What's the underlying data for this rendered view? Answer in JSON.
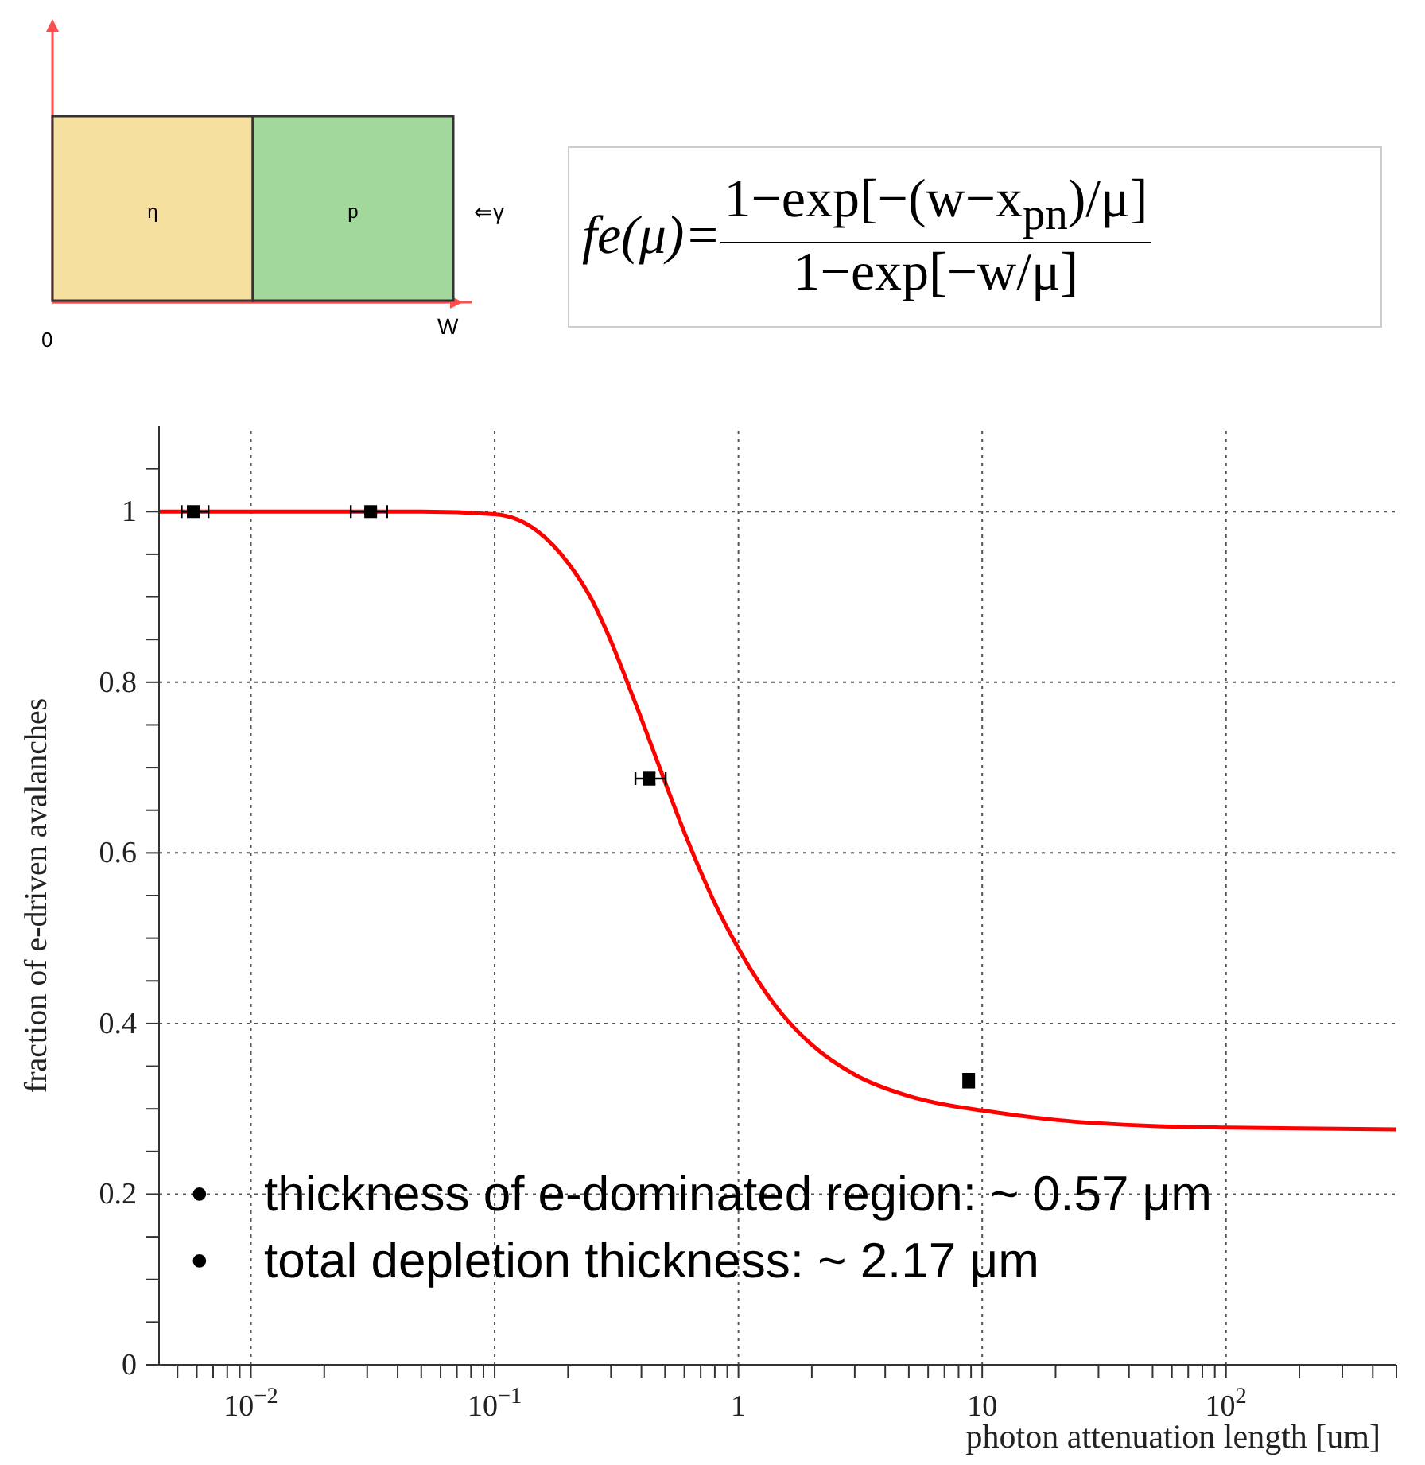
{
  "chart_data": {
    "type": "line",
    "xlabel": "photon attenuation length [um]",
    "ylabel": "fraction of e-driven avalanches",
    "log": "x",
    "grid": true,
    "xlim": [
      0.0042,
      500
    ],
    "ylim": [
      0,
      1.1
    ],
    "xticks": [
      {
        "value": 0.005,
        "label": null
      },
      {
        "value": 0.006,
        "label": null
      },
      {
        "value": 0.007,
        "label": null
      },
      {
        "value": 0.008,
        "label": null
      },
      {
        "value": 0.009,
        "label": null
      },
      {
        "value": 0.01,
        "label": "10$^{−2}$"
      },
      {
        "value": 0.02,
        "label": null
      },
      {
        "value": 0.03,
        "label": null
      },
      {
        "value": 0.04,
        "label": null
      },
      {
        "value": 0.05,
        "label": null
      },
      {
        "value": 0.06,
        "label": null
      },
      {
        "value": 0.07,
        "label": null
      },
      {
        "value": 0.08,
        "label": null
      },
      {
        "value": 0.09,
        "label": null
      },
      {
        "value": 0.1,
        "label": "10$^{−1}$"
      },
      {
        "value": 0.2,
        "label": null
      },
      {
        "value": 0.3,
        "label": null
      },
      {
        "value": 0.4,
        "label": null
      },
      {
        "value": 0.5,
        "label": null
      },
      {
        "value": 0.6,
        "label": null
      },
      {
        "value": 0.7,
        "label": null
      },
      {
        "value": 0.8,
        "label": null
      },
      {
        "value": 0.9,
        "label": null
      },
      1,
      {
        "value": 2,
        "label": null
      },
      {
        "value": 3,
        "label": null
      },
      {
        "value": 4,
        "label": null
      },
      {
        "value": 5,
        "label": null
      },
      {
        "value": 6,
        "label": null
      },
      {
        "value": 7,
        "label": null
      },
      {
        "value": 8,
        "label": null
      },
      {
        "value": 9,
        "label": null
      },
      10,
      {
        "value": 20,
        "label": null
      },
      {
        "value": 30,
        "label": null
      },
      {
        "value": 40,
        "label": null
      },
      {
        "value": 50,
        "label": null
      },
      {
        "value": 60,
        "label": null
      },
      {
        "value": 70,
        "label": null
      },
      {
        "value": 80,
        "label": null
      },
      {
        "value": 90,
        "label": null
      },
      {
        "value": 100,
        "label": "10$^{2}$"
      },
      {
        "value": 200,
        "label": null
      },
      {
        "value": 300,
        "label": null
      },
      {
        "value": 400,
        "label": null
      },
      {
        "value": 500,
        "label": null
      }
    ],
    "yticks": [
      0,
      {
        "value": 0.05,
        "label": null
      },
      {
        "value": 0.1,
        "label": null
      },
      {
        "value": 0.15,
        "label": null
      },
      0.2,
      {
        "value": 0.25,
        "label": null
      },
      {
        "value": 0.3,
        "label": null
      },
      {
        "value": 0.35,
        "label": null
      },
      0.4,
      {
        "value": 0.45,
        "label": null
      },
      {
        "value": 0.5,
        "label": null
      },
      {
        "value": 0.55,
        "label": null
      },
      0.6,
      {
        "value": 0.65,
        "label": null
      },
      {
        "value": 0.7,
        "label": null
      },
      {
        "value": 0.75,
        "label": null
      },
      0.8,
      {
        "value": 0.85,
        "label": null
      },
      {
        "value": 0.9,
        "label": null
      },
      {
        "value": 0.95,
        "label": null
      },
      1,
      {
        "value": 1.05,
        "label": null
      }
    ],
    "series": [
      {
        "color": "#ff0000",
        "line_style": "solid",
        "marker": "none",
        "x": [
          0.0042,
          0.01,
          0.05,
          0.1,
          0.15,
          0.2,
          0.25,
          0.3,
          0.35,
          0.4,
          0.5,
          0.6,
          0.7,
          0.8,
          1,
          1.5,
          2,
          3,
          5,
          7,
          10,
          20,
          50,
          100,
          200,
          500
        ],
        "values": [
          1.0,
          1.0,
          1.0,
          0.997,
          0.977,
          0.94,
          0.897,
          0.848,
          0.8,
          0.757,
          0.683,
          0.624,
          0.578,
          0.541,
          0.488,
          0.412,
          0.375,
          0.34,
          0.315,
          0.305,
          0.298,
          0.287,
          0.28,
          0.278,
          0.277,
          0.276
        ]
      },
      {
        "type": "scatter",
        "color": "#000000",
        "marker": "square",
        "x": [
          0.0058,
          0.031,
          0.43,
          8.8
        ],
        "values": [
          1.0,
          1.0,
          0.687,
          0.333
        ],
        "errors": [
          0.003,
          0.003,
          0.007,
          0.008
        ],
        "xerrors": [
          [
            0.0052,
            0.0067
          ],
          [
            0.0257,
            0.0362
          ],
          [
            0.378,
            0.503
          ],
          null
        ]
      }
    ],
    "annotations": [
      "fe(μ)=",
      "1−exp[−(w−x$_{pn}$)/μ]",
      "1−exp[−w/μ]",
      "η",
      "p",
      "⇐γ",
      "0",
      "W",
      "thickness of e-dominated region: ~ 0.57 μm",
      "total depletion thickness: ~ 2.17 μm",
      "•",
      "•"
    ]
  }
}
